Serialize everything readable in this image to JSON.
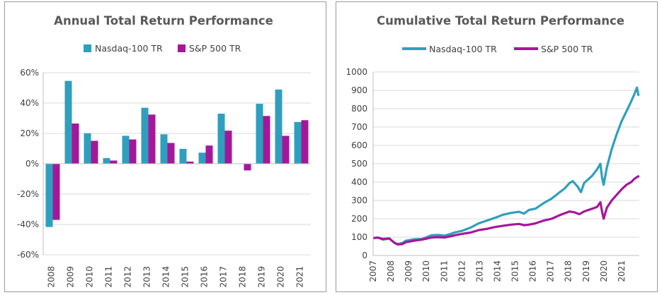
{
  "colors": {
    "nasdaq": "#2f9fbe",
    "sp500": "#a5179a",
    "grid": "#d9d9d9",
    "axis": "#bfbfbf"
  },
  "chart_data": [
    {
      "type": "bar",
      "title": "Annual Total Return Performance",
      "categories": [
        "2008",
        "2009",
        "2010",
        "2011",
        "2012",
        "2013",
        "2014",
        "2015",
        "2016",
        "2017",
        "2018",
        "2019",
        "2020",
        "2021"
      ],
      "series": [
        {
          "name": "Nasdaq-100 TR",
          "values": [
            -41.7,
            54.6,
            20.1,
            3.7,
            18.4,
            36.9,
            19.4,
            9.8,
            7.3,
            33.0,
            0.0,
            39.5,
            48.9,
            27.5
          ]
        },
        {
          "name": "S&P 500 TR",
          "values": [
            -37.0,
            26.5,
            15.1,
            2.1,
            16.0,
            32.4,
            13.7,
            1.4,
            12.0,
            21.8,
            -4.4,
            31.5,
            18.4,
            28.7
          ]
        }
      ],
      "ylim": [
        -60,
        60
      ],
      "yticks": [
        -60,
        -40,
        -20,
        0,
        20,
        40,
        60
      ],
      "ytick_labels": [
        "-60%",
        "-40%",
        "-20%",
        "0%",
        "20%",
        "40%",
        "60%"
      ],
      "legend_position": "top-center",
      "grid": "horizontal"
    },
    {
      "type": "line",
      "title": "Cumulative Total Return Performance",
      "x": [
        "2007",
        "2008",
        "2009",
        "2010",
        "2011",
        "2012",
        "2013",
        "2014",
        "2015",
        "2016",
        "2017",
        "2018",
        "2019",
        "2020",
        "2021"
      ],
      "series": [
        {
          "name": "Nasdaq-100 TR",
          "points": [
            [
              0,
              95
            ],
            [
              0.3,
              98
            ],
            [
              0.6,
              86
            ],
            [
              1.0,
              92
            ],
            [
              1.3,
              70
            ],
            [
              1.5,
              62
            ],
            [
              1.8,
              68
            ],
            [
              2.0,
              80
            ],
            [
              2.5,
              88
            ],
            [
              3.0,
              90
            ],
            [
              3.3,
              100
            ],
            [
              3.6,
              110
            ],
            [
              4.0,
              112
            ],
            [
              4.4,
              108
            ],
            [
              4.8,
              118
            ],
            [
              5.0,
              125
            ],
            [
              5.5,
              135
            ],
            [
              6.0,
              152
            ],
            [
              6.5,
              175
            ],
            [
              7.0,
              190
            ],
            [
              7.5,
              205
            ],
            [
              8.0,
              222
            ],
            [
              8.5,
              232
            ],
            [
              9.0,
              238
            ],
            [
              9.3,
              228
            ],
            [
              9.6,
              248
            ],
            [
              10.0,
              255
            ],
            [
              10.5,
              285
            ],
            [
              11.0,
              310
            ],
            [
              11.5,
              345
            ],
            [
              11.8,
              365
            ],
            [
              12.1,
              395
            ],
            [
              12.3,
              405
            ],
            [
              12.6,
              375
            ],
            [
              12.8,
              345
            ],
            [
              13.0,
              395
            ],
            [
              13.5,
              435
            ],
            [
              13.8,
              470
            ],
            [
              14.0,
              500
            ],
            [
              14.1,
              425
            ],
            [
              14.2,
              385
            ],
            [
              14.4,
              480
            ],
            [
              14.7,
              580
            ],
            [
              15.0,
              660
            ],
            [
              15.3,
              730
            ],
            [
              15.6,
              785
            ],
            [
              15.9,
              840
            ],
            [
              16.1,
              880
            ],
            [
              16.25,
              915
            ],
            [
              16.35,
              870
            ]
          ]
        },
        {
          "name": "S&P 500 TR",
          "points": [
            [
              0,
              95
            ],
            [
              0.3,
              97
            ],
            [
              0.6,
              90
            ],
            [
              1.0,
              93
            ],
            [
              1.3,
              70
            ],
            [
              1.5,
              60
            ],
            [
              1.8,
              62
            ],
            [
              2.0,
              72
            ],
            [
              2.5,
              80
            ],
            [
              3.0,
              86
            ],
            [
              3.3,
              92
            ],
            [
              3.6,
              98
            ],
            [
              4.0,
              100
            ],
            [
              4.4,
              98
            ],
            [
              4.8,
              105
            ],
            [
              5.0,
              110
            ],
            [
              5.5,
              118
            ],
            [
              6.0,
              125
            ],
            [
              6.5,
              138
            ],
            [
              7.0,
              145
            ],
            [
              7.5,
              155
            ],
            [
              8.0,
              162
            ],
            [
              8.5,
              168
            ],
            [
              9.0,
              172
            ],
            [
              9.3,
              165
            ],
            [
              9.6,
              168
            ],
            [
              10.0,
              175
            ],
            [
              10.5,
              190
            ],
            [
              11.0,
              200
            ],
            [
              11.5,
              220
            ],
            [
              11.8,
              230
            ],
            [
              12.1,
              240
            ],
            [
              12.4,
              235
            ],
            [
              12.7,
              225
            ],
            [
              13.0,
              240
            ],
            [
              13.5,
              255
            ],
            [
              13.8,
              265
            ],
            [
              14.0,
              290
            ],
            [
              14.1,
              240
            ],
            [
              14.2,
              200
            ],
            [
              14.4,
              260
            ],
            [
              14.7,
              300
            ],
            [
              15.0,
              330
            ],
            [
              15.3,
              360
            ],
            [
              15.6,
              385
            ],
            [
              15.9,
              400
            ],
            [
              16.1,
              418
            ],
            [
              16.3,
              430
            ],
            [
              16.4,
              432
            ]
          ]
        }
      ],
      "xlim": [
        0,
        16.4
      ],
      "ylim": [
        0,
        1000
      ],
      "yticks": [
        0,
        100,
        200,
        300,
        400,
        500,
        600,
        700,
        800,
        900,
        1000
      ],
      "legend_position": "top-center",
      "grid": "horizontal"
    }
  ]
}
